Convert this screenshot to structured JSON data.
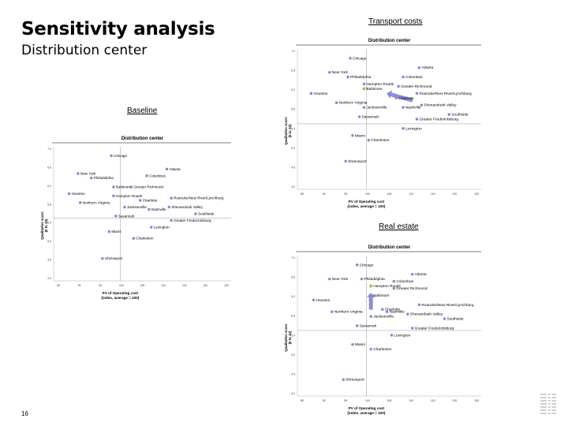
{
  "slide": {
    "title": "Sensitivity analysis",
    "subtitle": "Distribution center",
    "page_number": "16",
    "logo": "IBM"
  },
  "colors": {
    "point": "#7f86d8",
    "highlight": "#a2b45c",
    "arrow": "#8a8ed8",
    "grid": "#999999"
  },
  "chart_data": [
    {
      "type": "scatter",
      "section": "Baseline",
      "title": "Distribution center",
      "xlabel": "PV of Operating cost",
      "xlabel2": "(index, average = 100)",
      "ylabel": "Qualitative score",
      "ylabel2": "(0 to 10)",
      "xlim": [
        85,
        125
      ],
      "ylim": [
        4.0,
        7.0
      ],
      "xticks": [
        "85",
        "90",
        "95",
        "100",
        "105",
        "110",
        "115",
        "120",
        "125"
      ],
      "yticks": [
        "7.0",
        "6.6",
        "6.2",
        "5.8",
        "5.4",
        "5.0",
        "4.6",
        "4.0"
      ],
      "ref_x": 100,
      "ref_y": 5.4,
      "points": [
        {
          "name": "Chicago",
          "x": 98.0,
          "y": 6.8
        },
        {
          "name": "Atlanta",
          "x": 110.5,
          "y": 6.5
        },
        {
          "name": "New York",
          "x": 90.5,
          "y": 6.4
        },
        {
          "name": "Philadelphia",
          "x": 93.5,
          "y": 6.3
        },
        {
          "name": "Columbus",
          "x": 106.0,
          "y": 6.35
        },
        {
          "name": "Baltimore",
          "x": 98.5,
          "y": 6.1
        },
        {
          "name": "Greater Richmond",
          "x": 102.5,
          "y": 6.1
        },
        {
          "name": "Houston",
          "x": 88.5,
          "y": 5.95
        },
        {
          "name": "Hampton Roads",
          "x": 98.5,
          "y": 5.9
        },
        {
          "name": "Roanoke/New River/Lynchburg",
          "x": 111.5,
          "y": 5.85
        },
        {
          "name": "Northern Virginia",
          "x": 91.0,
          "y": 5.75
        },
        {
          "name": "Charlotte",
          "x": 104.5,
          "y": 5.8
        },
        {
          "name": "Jacksonville",
          "x": 101.0,
          "y": 5.65
        },
        {
          "name": "Nashville",
          "x": 106.5,
          "y": 5.6
        },
        {
          "name": "Shenandoah Valley",
          "x": 111.0,
          "y": 5.65
        },
        {
          "name": "Southside",
          "x": 117.0,
          "y": 5.5
        },
        {
          "name": "Savannah",
          "x": 99.0,
          "y": 5.45
        },
        {
          "name": "Greater Fredericksburg",
          "x": 111.5,
          "y": 5.35
        },
        {
          "name": "Lexington",
          "x": 107.0,
          "y": 5.2
        },
        {
          "name": "Miami",
          "x": 97.5,
          "y": 5.1
        },
        {
          "name": "Charleston",
          "x": 103.0,
          "y": 4.95
        },
        {
          "name": "Shreveport",
          "x": 96.0,
          "y": 4.5
        }
      ]
    },
    {
      "type": "scatter",
      "section": "Transport costs",
      "title": "Distribution center",
      "xlabel": "PV of Operating cost",
      "xlabel2": "(index, average = 100)",
      "ylabel": "Qualitative score",
      "ylabel2": "(0 to 10)",
      "xlim": [
        85,
        125
      ],
      "ylim": [
        4.0,
        7.0
      ],
      "xticks": [
        "85",
        "90",
        "95",
        "100",
        "105",
        "110",
        "115",
        "120",
        "125"
      ],
      "yticks": [
        "7.0",
        "6.6",
        "6.2",
        "5.8",
        "5.4",
        "5.0",
        "4.6",
        "4.0"
      ],
      "ref_x": 100,
      "ref_y": 5.4,
      "highlight": "Baltimore",
      "arrow": {
        "from_x": 110.0,
        "from_y": 5.9,
        "to_x": 104.5,
        "to_y": 6.05
      },
      "points": [
        {
          "name": "Chicago",
          "x": 96.5,
          "y": 6.8
        },
        {
          "name": "Atlanta",
          "x": 111.5,
          "y": 6.6
        },
        {
          "name": "New York",
          "x": 92.0,
          "y": 6.5
        },
        {
          "name": "Philadelphia",
          "x": 96.0,
          "y": 6.4
        },
        {
          "name": "Columbus",
          "x": 108.0,
          "y": 6.4
        },
        {
          "name": "Hampton Roads",
          "x": 99.5,
          "y": 6.25
        },
        {
          "name": "Greater Richmond",
          "x": 107.0,
          "y": 6.2
        },
        {
          "name": "Baltimore",
          "x": 99.5,
          "y": 6.15
        },
        {
          "name": "Houston",
          "x": 88.0,
          "y": 6.05
        },
        {
          "name": "Roanoke/New River/Lynchburg",
          "x": 111.0,
          "y": 6.05
        },
        {
          "name": "Charlotte",
          "x": 106.5,
          "y": 5.95
        },
        {
          "name": "Northern Virginia",
          "x": 93.5,
          "y": 5.85
        },
        {
          "name": "Jacksonville",
          "x": 99.5,
          "y": 5.75
        },
        {
          "name": "Nashville",
          "x": 108.0,
          "y": 5.75
        },
        {
          "name": "Shenandoah Valley",
          "x": 112.0,
          "y": 5.8
        },
        {
          "name": "Southside",
          "x": 118.0,
          "y": 5.6
        },
        {
          "name": "Savannah",
          "x": 98.5,
          "y": 5.55
        },
        {
          "name": "Greater Fredericksburg",
          "x": 111.0,
          "y": 5.5
        },
        {
          "name": "Lexington",
          "x": 108.0,
          "y": 5.3
        },
        {
          "name": "Miami",
          "x": 97.0,
          "y": 5.15
        },
        {
          "name": "Charleston",
          "x": 100.5,
          "y": 5.05
        },
        {
          "name": "Shreveport",
          "x": 95.5,
          "y": 4.6
        }
      ]
    },
    {
      "type": "scatter",
      "section": "Real estate",
      "title": "Distribution center",
      "xlabel": "PV of Operating cost",
      "xlabel2": "(index, average = 100)",
      "ylabel": "Qualitative score",
      "ylabel2": "(0 to 10)",
      "xlim": [
        85,
        125
      ],
      "ylim": [
        4.0,
        7.0
      ],
      "xticks": [
        "85",
        "90",
        "95",
        "100",
        "105",
        "110",
        "115",
        "120",
        "125"
      ],
      "yticks": [
        "7.0",
        "6.6",
        "6.2",
        "5.8",
        "5.4",
        "5.0",
        "4.6",
        "4.0"
      ],
      "ref_x": 100,
      "ref_y": 5.4,
      "highlight": "Hampton Roads",
      "arrow": {
        "from_x": 101.0,
        "from_y": 5.85,
        "to_x": 101.0,
        "to_y": 6.2
      },
      "points": [
        {
          "name": "Chicago",
          "x": 98.0,
          "y": 6.8
        },
        {
          "name": "Atlanta",
          "x": 110.0,
          "y": 6.6
        },
        {
          "name": "New York",
          "x": 92.0,
          "y": 6.5
        },
        {
          "name": "Philadelphia",
          "x": 99.0,
          "y": 6.5
        },
        {
          "name": "Columbus",
          "x": 106.0,
          "y": 6.45
        },
        {
          "name": "Hampton Roads",
          "x": 101.0,
          "y": 6.35
        },
        {
          "name": "Greater Richmond",
          "x": 106.0,
          "y": 6.3
        },
        {
          "name": "Baltimore",
          "x": 101.0,
          "y": 6.15
        },
        {
          "name": "Houston",
          "x": 88.5,
          "y": 6.05
        },
        {
          "name": "Roanoke/New River/Lynchburg",
          "x": 111.5,
          "y": 5.95
        },
        {
          "name": "Charlotte",
          "x": 103.5,
          "y": 5.85
        },
        {
          "name": "Northern Virginia",
          "x": 92.5,
          "y": 5.8
        },
        {
          "name": "Jacksonville",
          "x": 101.0,
          "y": 5.7
        },
        {
          "name": "Nashville",
          "x": 104.5,
          "y": 5.8
        },
        {
          "name": "Shenandoah Valley",
          "x": 109.0,
          "y": 5.75
        },
        {
          "name": "Southside",
          "x": 117.0,
          "y": 5.65
        },
        {
          "name": "Savannah",
          "x": 98.0,
          "y": 5.5
        },
        {
          "name": "Greater Fredericksburg",
          "x": 110.0,
          "y": 5.45
        },
        {
          "name": "Lexington",
          "x": 105.5,
          "y": 5.3
        },
        {
          "name": "Miami",
          "x": 97.0,
          "y": 5.1
        },
        {
          "name": "Charleston",
          "x": 101.0,
          "y": 5.0
        },
        {
          "name": "Shreveport",
          "x": 95.0,
          "y": 4.35
        }
      ]
    }
  ]
}
